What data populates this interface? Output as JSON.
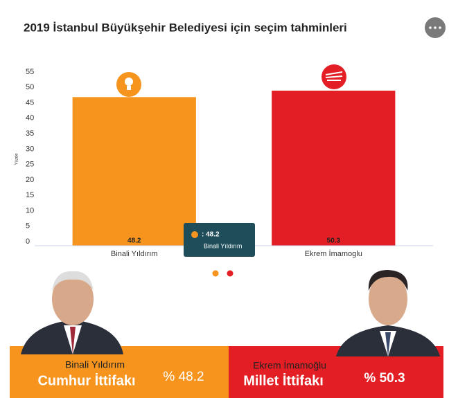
{
  "chart_data": {
    "type": "bar",
    "title": "2019 İstanbul Büyükşehir Belediyesi için seçim tahminleri",
    "y_label": "Yüzde",
    "categories": [
      "Binali Yıldırım",
      "Ekrem İmamoglu"
    ],
    "values": [
      48.2,
      50.3
    ],
    "colors": [
      "#f7941d",
      "#e31e24"
    ],
    "ylim": [
      0,
      55
    ],
    "yticks": [
      0,
      5,
      10,
      15,
      20,
      25,
      30,
      35,
      40,
      45,
      50,
      55
    ],
    "grid": false,
    "tooltip": {
      "value_label": ": 48.2",
      "name": "Binali Yıldırım"
    }
  },
  "footer": [
    {
      "name": "Binali Yıldırım",
      "alliance": "Cumhur İttifakı",
      "percent": "% 48.2"
    },
    {
      "name": "Ekrem İmamoğlu",
      "alliance": "Millet İttifakı",
      "percent": "% 50.3"
    }
  ]
}
